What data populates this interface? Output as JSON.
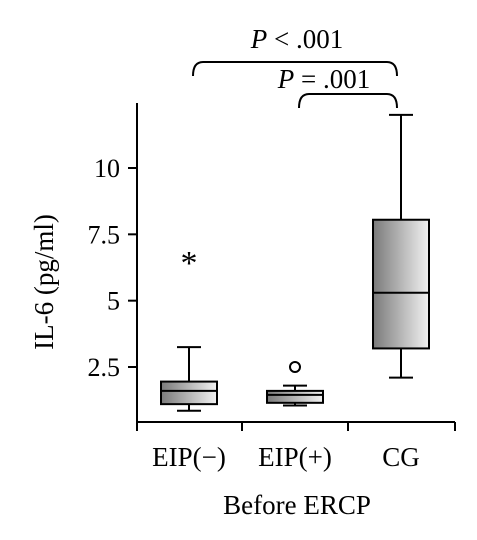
{
  "chart_data": {
    "type": "box",
    "categories": [
      "EIP(−)",
      "EIP(+)",
      "CG"
    ],
    "xlabel": "Before ERCP",
    "ylabel": "IL-6 (pg/ml)",
    "ylim": [
      0.4,
      12.2
    ],
    "yticks": [
      2.5,
      5,
      7.5,
      10
    ],
    "ytick_labels": [
      "2.5",
      "5",
      "7.5",
      "10"
    ],
    "boxes": [
      {
        "category": "EIP(−)",
        "whisker_low": 0.85,
        "q1": 1.1,
        "median": 1.6,
        "q3": 1.95,
        "whisker_high": 3.25,
        "outlier_marker": "*",
        "outliers": [
          6.6
        ]
      },
      {
        "category": "EIP(+)",
        "whisker_low": 1.05,
        "q1": 1.15,
        "median": 1.45,
        "q3": 1.6,
        "whisker_high": 1.8,
        "outlier_marker": "o",
        "outliers": [
          2.5
        ]
      },
      {
        "category": "CG",
        "whisker_low": 2.1,
        "q1": 3.2,
        "median": 5.3,
        "q3": 8.05,
        "whisker_high": 12.0,
        "outlier_marker": "",
        "outliers": []
      }
    ],
    "annotations": [
      {
        "from": "EIP(−)",
        "to": "CG",
        "p_symbol": "P",
        "p_rest": " < .001"
      },
      {
        "from": "EIP(+)",
        "to": "CG",
        "p_symbol": "P",
        "p_rest": " = .001"
      }
    ],
    "box_gradient": [
      "#7a7a7a",
      "#f2f2f2"
    ],
    "grid": false,
    "legend": "none"
  }
}
